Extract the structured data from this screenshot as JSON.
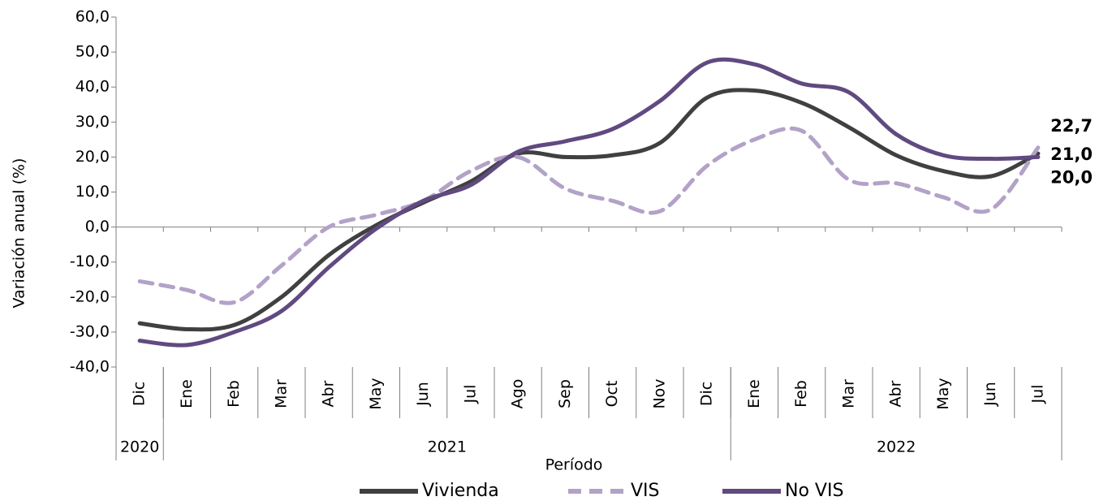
{
  "chart_data": {
    "type": "line",
    "x_label": "Período",
    "y_label": "Variación anual (%)",
    "categories": [
      "Dic",
      "Ene",
      "Feb",
      "Mar",
      "Abr",
      "May",
      "Jun",
      "Jul",
      "Ago",
      "Sep",
      "Oct",
      "Nov",
      "Dic",
      "Ene",
      "Feb",
      "Mar",
      "Abr",
      "May",
      "Jun",
      "Jul"
    ],
    "x_groups": [
      {
        "label": "2020",
        "count": 1
      },
      {
        "label": "2021",
        "count": 12
      },
      {
        "label": "2022",
        "count": 7
      }
    ],
    "ylim": [
      -40,
      60
    ],
    "yticks": [
      {
        "value": -40,
        "label": "-40,0"
      },
      {
        "value": -30,
        "label": "-30,0"
      },
      {
        "value": -20,
        "label": "-20,0"
      },
      {
        "value": -10,
        "label": "-10,0"
      },
      {
        "value": 0,
        "label": "0,0"
      },
      {
        "value": 10,
        "label": "10,0"
      },
      {
        "value": 20,
        "label": "20,0"
      },
      {
        "value": 30,
        "label": "30,0"
      },
      {
        "value": 40,
        "label": "40,0"
      },
      {
        "value": 50,
        "label": "50,0"
      },
      {
        "value": 60,
        "label": "60,0"
      }
    ],
    "legend": "bottom",
    "series": [
      {
        "name": "Vivienda",
        "color": "#404040",
        "dash": false,
        "values": [
          -27.5,
          -29.2,
          -28,
          -20,
          -8,
          0.5,
          7,
          13,
          21,
          20,
          20.5,
          24,
          37,
          39,
          35.5,
          28.5,
          20.5,
          16,
          14.5,
          21.0
        ],
        "value_labels": [
          null,
          null,
          null,
          null,
          null,
          null,
          null,
          null,
          null,
          null,
          null,
          null,
          null,
          null,
          null,
          null,
          null,
          null,
          null,
          "21,0"
        ]
      },
      {
        "name": "VIS",
        "color": "#b3a2c8",
        "dash": true,
        "values": [
          -15.5,
          -18,
          -21.5,
          -11,
          0,
          3.5,
          7.5,
          16,
          20,
          11,
          7.5,
          4.5,
          17.5,
          25,
          27.5,
          13.5,
          12.5,
          8.5,
          5,
          22.7
        ],
        "value_labels": [
          null,
          null,
          null,
          null,
          null,
          null,
          null,
          null,
          null,
          null,
          null,
          null,
          null,
          null,
          null,
          null,
          null,
          null,
          null,
          "22,7"
        ]
      },
      {
        "name": "No VIS",
        "color": "#604a80",
        "dash": false,
        "values": [
          -32.5,
          -33.7,
          -30,
          -24,
          -11.5,
          -0.5,
          7.5,
          12,
          21.5,
          24.5,
          28,
          36,
          47,
          46.5,
          41,
          38.5,
          26.5,
          20.5,
          19.5,
          20.0
        ],
        "value_labels": [
          null,
          null,
          null,
          null,
          null,
          null,
          null,
          null,
          null,
          null,
          null,
          null,
          null,
          null,
          null,
          null,
          null,
          null,
          null,
          "20,0"
        ]
      }
    ]
  }
}
